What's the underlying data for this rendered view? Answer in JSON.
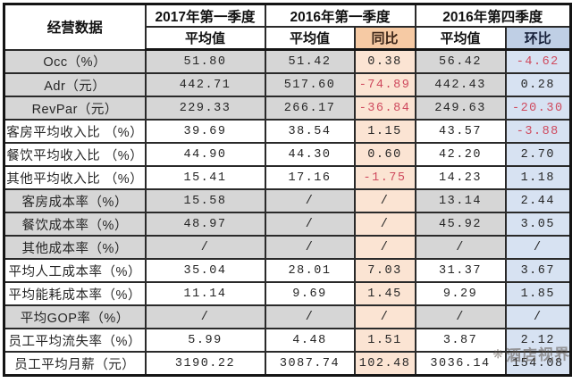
{
  "table": {
    "corner_label": "经营数据",
    "column_groups": [
      {
        "title": "2017年第一季度"
      },
      {
        "title": "2016年第一季度"
      },
      {
        "title": "2016年第四季度"
      }
    ],
    "subheaders": [
      "平均值",
      "平均值",
      "同比",
      "平均值",
      "环比"
    ],
    "rows": [
      {
        "label": "Occ（%）",
        "values": [
          "51.80",
          "51.42",
          "0.38",
          "56.42",
          "-4.62"
        ],
        "shaded": true
      },
      {
        "label": "Adr（元）",
        "values": [
          "442.71",
          "517.60",
          "-74.89",
          "442.43",
          "0.28"
        ],
        "shaded": true
      },
      {
        "label": "RevPar（元）",
        "values": [
          "229.33",
          "266.17",
          "-36.84",
          "249.63",
          "-20.30"
        ],
        "shaded": true
      },
      {
        "label": "客房平均收入比 （%）",
        "values": [
          "39.69",
          "38.54",
          "1.15",
          "43.57",
          "-3.88"
        ],
        "shaded": false
      },
      {
        "label": "餐饮平均收入比 （%）",
        "values": [
          "44.90",
          "44.30",
          "0.60",
          "42.20",
          "2.70"
        ],
        "shaded": false
      },
      {
        "label": "其他平均收入比 （%）",
        "values": [
          "15.41",
          "17.16",
          "-1.75",
          "14.23",
          "1.18"
        ],
        "shaded": false
      },
      {
        "label": "客房成本率（%）",
        "values": [
          "15.58",
          "/",
          "/",
          "13.14",
          "2.44"
        ],
        "shaded": true
      },
      {
        "label": "餐饮成本率（%）",
        "values": [
          "48.97",
          "/",
          "/",
          "45.92",
          "3.05"
        ],
        "shaded": true
      },
      {
        "label": "其他成本率（%）",
        "values": [
          "/",
          "/",
          "/",
          "/",
          "/"
        ],
        "shaded": true
      },
      {
        "label": "平均人工成本率（%）",
        "values": [
          "35.04",
          "28.01",
          "7.03",
          "31.37",
          "3.67"
        ],
        "shaded": false
      },
      {
        "label": "平均能耗成本率（%）",
        "values": [
          "11.14",
          "9.69",
          "1.45",
          "9.29",
          "1.85"
        ],
        "shaded": false
      },
      {
        "label": "平均GOP率（%）",
        "values": [
          "/",
          "/",
          "/",
          "/",
          "/"
        ],
        "shaded": true
      },
      {
        "label": "员工平均流失率（%）",
        "values": [
          "5.99",
          "4.48",
          "1.51",
          "3.87",
          "2.12"
        ],
        "shaded": false
      },
      {
        "label": "员工平均月薪（元）",
        "values": [
          "3190.22",
          "3087.74",
          "102.48",
          "3036.14",
          "154.08"
        ],
        "shaded": false
      }
    ]
  },
  "watermark": {
    "icon": "❋",
    "text": "酒店视界"
  },
  "colors": {
    "yoy_header_bg": "#f6caa4",
    "yoy_cell_bg": "#fbe4d3",
    "qoq_header_bg": "#bfcfe5",
    "qoq_cell_bg": "#d7e2f2",
    "shaded_row_bg": "#d6d6d6",
    "negative_value": "#cf4a5e",
    "grid_border": "#141414"
  }
}
